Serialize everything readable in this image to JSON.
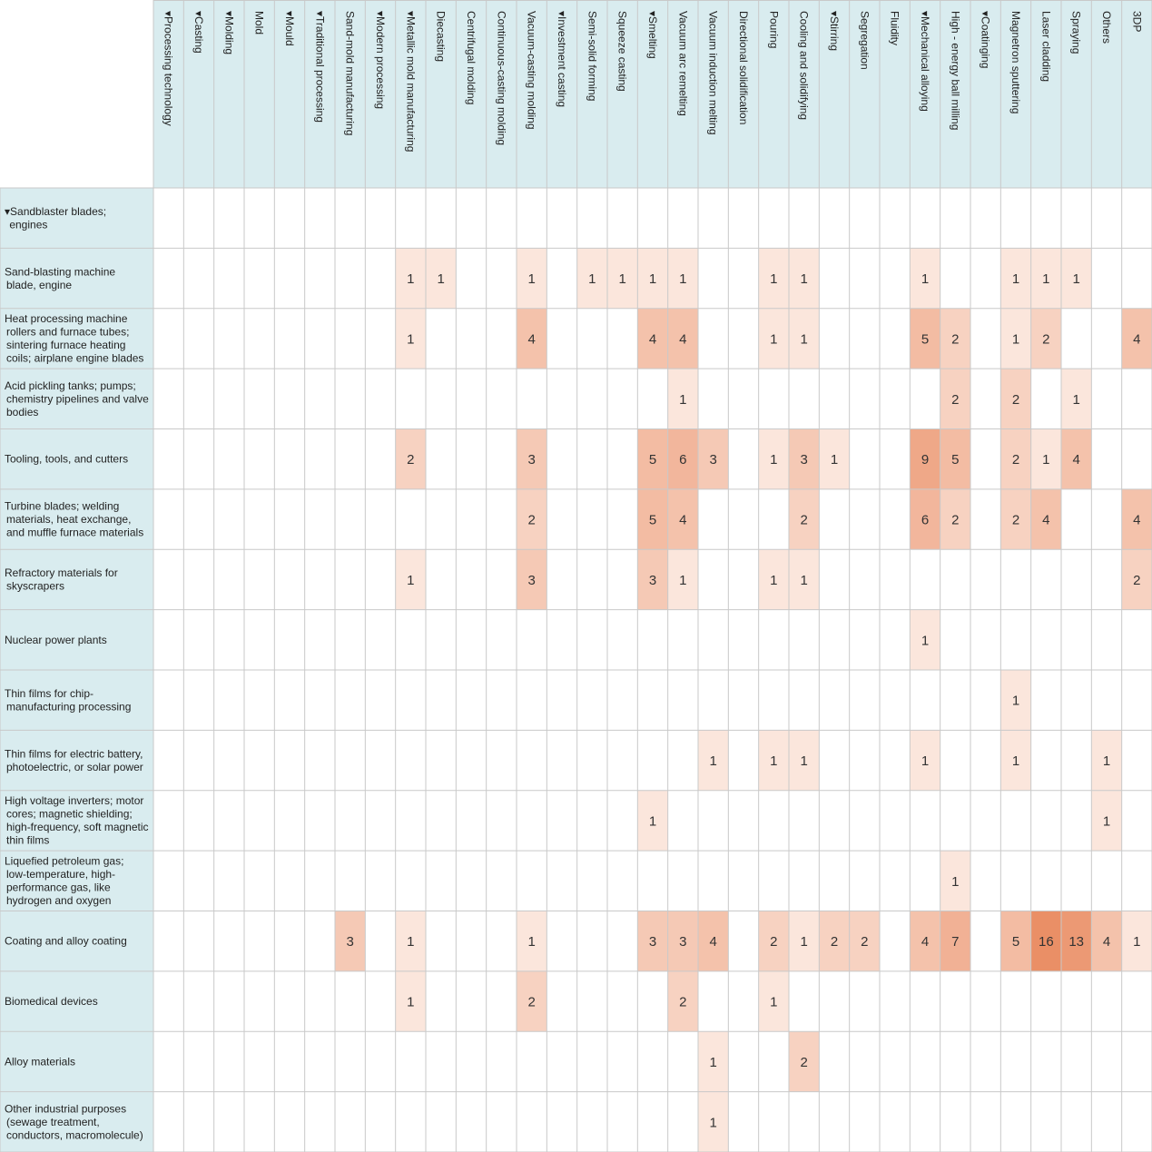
{
  "colors": {
    "header_bg": "#d9ecef",
    "grid_line": "#c9c9c9",
    "heat_low": "#fbe6dc",
    "heat_high": "#ea8f66"
  },
  "chart_data": {
    "type": "heatmap",
    "columns": [
      "▾Processing technology",
      "▾Casting",
      "▾Molding",
      "Mold",
      "▾Mould",
      "▾Traditional processing",
      "Sand-mold manufacturing",
      "▾Modern processing",
      "▾Metallic mold manufacturing",
      "Diecasting",
      "Centrifugal molding",
      "Continuous-casting molding",
      "Vacuum-casting molding",
      "▾Investment casting",
      "Semi-solid forming",
      "Squeeze casting",
      "▾Smelting",
      "Vacuum arc remelting",
      "Vacuum induction melting",
      "Directional solidification",
      "Pouring",
      "Cooling and solidifying",
      "▾Stirring",
      "Segregation",
      "Fluidity",
      "▾Mechanical alloying",
      "High - energy ball milling",
      "▾Coatinging",
      "Magnetron sputtering",
      "Laser cladding",
      "Spraying",
      "Others",
      "3DP"
    ],
    "rows": [
      {
        "label": [
          "▾Sandblaster blades;",
          "  engines"
        ],
        "values": [
          null,
          null,
          null,
          null,
          null,
          null,
          null,
          null,
          null,
          null,
          null,
          null,
          null,
          null,
          null,
          null,
          null,
          null,
          null,
          null,
          null,
          null,
          null,
          null,
          null,
          null,
          null,
          null,
          null,
          null,
          null,
          null,
          null
        ]
      },
      {
        "label": [
          "Sand-blasting machine",
          "blade, engine"
        ],
        "values": [
          null,
          null,
          null,
          null,
          null,
          null,
          null,
          null,
          1,
          1,
          null,
          null,
          1,
          null,
          1,
          1,
          1,
          1,
          null,
          null,
          1,
          1,
          null,
          null,
          null,
          1,
          null,
          null,
          1,
          1,
          1,
          null,
          null
        ]
      },
      {
        "label": [
          "Heat processing machine",
          "rollers and furnace tubes;",
          "sintering furnace heating",
          "coils; airplane engine blades"
        ],
        "values": [
          null,
          null,
          null,
          null,
          null,
          null,
          null,
          null,
          1,
          null,
          null,
          null,
          4,
          null,
          null,
          null,
          4,
          4,
          null,
          null,
          1,
          1,
          null,
          null,
          null,
          5,
          2,
          null,
          1,
          2,
          null,
          null,
          4
        ]
      },
      {
        "label": [
          "Acid pickling tanks; pumps;",
          "chemistry pipelines and valve",
          "bodies"
        ],
        "values": [
          null,
          null,
          null,
          null,
          null,
          null,
          null,
          null,
          null,
          null,
          null,
          null,
          null,
          null,
          null,
          null,
          null,
          1,
          null,
          null,
          null,
          null,
          null,
          null,
          null,
          null,
          2,
          null,
          2,
          null,
          1,
          null,
          null
        ]
      },
      {
        "label": [
          "Tooling, tools, and cutters"
        ],
        "values": [
          null,
          null,
          null,
          null,
          null,
          null,
          null,
          null,
          2,
          null,
          null,
          null,
          3,
          null,
          null,
          null,
          5,
          6,
          3,
          null,
          1,
          3,
          1,
          null,
          null,
          9,
          5,
          null,
          2,
          1,
          4,
          null,
          null
        ]
      },
      {
        "label": [
          "Turbine blades; welding",
          "materials, heat exchange,",
          "and muffle furnace materials"
        ],
        "values": [
          null,
          null,
          null,
          null,
          null,
          null,
          null,
          null,
          null,
          null,
          null,
          null,
          2,
          null,
          null,
          null,
          5,
          4,
          null,
          null,
          null,
          2,
          null,
          null,
          null,
          6,
          2,
          null,
          2,
          4,
          null,
          null,
          4
        ]
      },
      {
        "label": [
          "Refractory materials for",
          "skyscrapers"
        ],
        "values": [
          null,
          null,
          null,
          null,
          null,
          null,
          null,
          null,
          1,
          null,
          null,
          null,
          3,
          null,
          null,
          null,
          3,
          1,
          null,
          null,
          1,
          1,
          null,
          null,
          null,
          null,
          null,
          null,
          null,
          null,
          null,
          null,
          2
        ]
      },
      {
        "label": [
          "Nuclear power plants"
        ],
        "values": [
          null,
          null,
          null,
          null,
          null,
          null,
          null,
          null,
          null,
          null,
          null,
          null,
          null,
          null,
          null,
          null,
          null,
          null,
          null,
          null,
          null,
          null,
          null,
          null,
          null,
          1,
          null,
          null,
          null,
          null,
          null,
          null,
          null
        ]
      },
      {
        "label": [
          "Thin films for chip-",
          "manufacturing processing"
        ],
        "values": [
          null,
          null,
          null,
          null,
          null,
          null,
          null,
          null,
          null,
          null,
          null,
          null,
          null,
          null,
          null,
          null,
          null,
          null,
          null,
          null,
          null,
          null,
          null,
          null,
          null,
          null,
          null,
          null,
          1,
          null,
          null,
          null,
          null
        ]
      },
      {
        "label": [
          "Thin films for electric battery,",
          "photoelectric, or solar power"
        ],
        "values": [
          null,
          null,
          null,
          null,
          null,
          null,
          null,
          null,
          null,
          null,
          null,
          null,
          null,
          null,
          null,
          null,
          null,
          null,
          1,
          null,
          1,
          1,
          null,
          null,
          null,
          1,
          null,
          null,
          1,
          null,
          null,
          1,
          null
        ]
      },
      {
        "label": [
          "High voltage inverters; motor",
          "cores; magnetic shielding;",
          "high-frequency, soft magnetic",
          "thin films"
        ],
        "values": [
          null,
          null,
          null,
          null,
          null,
          null,
          null,
          null,
          null,
          null,
          null,
          null,
          null,
          null,
          null,
          null,
          1,
          null,
          null,
          null,
          null,
          null,
          null,
          null,
          null,
          null,
          null,
          null,
          null,
          null,
          null,
          1,
          null
        ]
      },
      {
        "label": [
          "Liquefied petroleum gas;",
          "low-temperature, high-",
          "performance gas, like",
          "hydrogen and oxygen"
        ],
        "values": [
          null,
          null,
          null,
          null,
          null,
          null,
          null,
          null,
          null,
          null,
          null,
          null,
          null,
          null,
          null,
          null,
          null,
          null,
          null,
          null,
          null,
          null,
          null,
          null,
          null,
          null,
          1,
          null,
          null,
          null,
          null,
          null,
          null
        ]
      },
      {
        "label": [
          "Coating and alloy coating"
        ],
        "values": [
          null,
          null,
          null,
          null,
          null,
          null,
          3,
          null,
          1,
          null,
          null,
          null,
          1,
          null,
          null,
          null,
          3,
          3,
          4,
          null,
          2,
          1,
          2,
          2,
          null,
          4,
          7,
          null,
          5,
          16,
          13,
          4,
          1
        ]
      },
      {
        "label": [
          "Biomedical devices"
        ],
        "values": [
          null,
          null,
          null,
          null,
          null,
          null,
          null,
          null,
          1,
          null,
          null,
          null,
          2,
          null,
          null,
          null,
          null,
          2,
          null,
          null,
          1,
          null,
          null,
          null,
          null,
          null,
          null,
          null,
          null,
          null,
          null,
          null,
          null
        ]
      },
      {
        "label": [
          "Alloy materials"
        ],
        "values": [
          null,
          null,
          null,
          null,
          null,
          null,
          null,
          null,
          null,
          null,
          null,
          null,
          null,
          null,
          null,
          null,
          null,
          null,
          1,
          null,
          null,
          2,
          null,
          null,
          null,
          null,
          null,
          null,
          null,
          null,
          null,
          null,
          null
        ]
      },
      {
        "label": [
          "Other industrial purposes",
          "(sewage treatment,",
          "conductors, macromolecule)"
        ],
        "values": [
          null,
          null,
          null,
          null,
          null,
          null,
          null,
          null,
          null,
          null,
          null,
          null,
          null,
          null,
          null,
          null,
          null,
          null,
          1,
          null,
          null,
          null,
          null,
          null,
          null,
          null,
          null,
          null,
          null,
          null,
          null,
          null,
          null
        ]
      }
    ]
  }
}
